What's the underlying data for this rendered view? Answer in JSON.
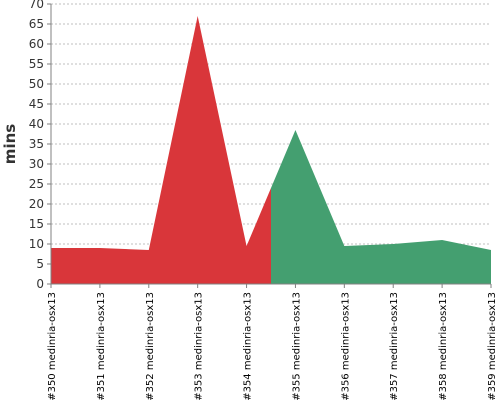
{
  "chart_data": {
    "type": "area",
    "title": "",
    "xlabel": "",
    "ylabel": "mins",
    "ylim": [
      0,
      70
    ],
    "yticks": [
      0,
      5,
      10,
      15,
      20,
      25,
      30,
      35,
      40,
      45,
      50,
      55,
      60,
      65,
      70
    ],
    "grid": true,
    "categories": [
      "#350 medinria-osx13",
      "#351 medinria-osx13",
      "#352 medinria-osx13",
      "#353 medinria-osx13",
      "#354 medinria-osx13",
      "#355 medinria-osx13",
      "#356 medinria-osx13",
      "#357 medinria-osx13",
      "#358 medinria-osx13",
      "#359 medinria-osx13"
    ],
    "values": [
      9.0,
      9.0,
      8.5,
      67.0,
      9.5,
      38.5,
      9.5,
      10.0,
      11.0,
      8.5
    ],
    "status_colors": {
      "failed": "#d9363a",
      "success": "#449f70"
    },
    "segments": [
      {
        "status": "failed",
        "from": 0,
        "to": 4.5
      },
      {
        "status": "success",
        "from": 4.5,
        "to": 9
      }
    ]
  }
}
